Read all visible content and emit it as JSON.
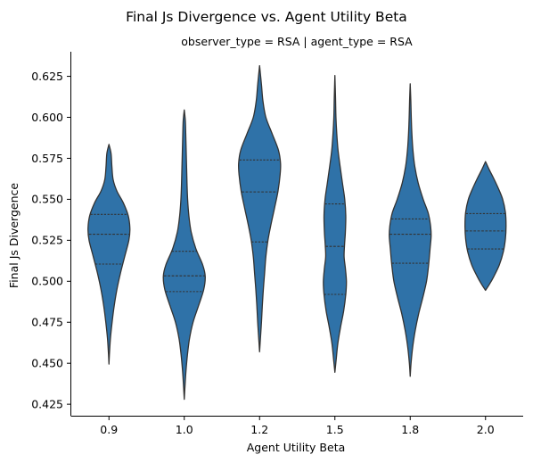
{
  "chart_data": {
    "type": "violin",
    "title": "Final Js Divergence vs. Agent Utility Beta",
    "subtitle": "observer_type = RSA | agent_type = RSA",
    "xlabel": "Agent Utility Beta",
    "ylabel": "Final Js Divergence",
    "categories": [
      "0.9",
      "1.0",
      "1.2",
      "1.5",
      "1.8",
      "2.0"
    ],
    "ylim": [
      0.418,
      0.64
    ],
    "yticks": [
      "0.425",
      "0.450",
      "0.475",
      "0.500",
      "0.525",
      "0.550",
      "0.575",
      "0.600",
      "0.625"
    ],
    "inner": "quartile",
    "colors": {
      "fill": "#2f72a8",
      "edge": "#333333",
      "axis": "#000000"
    },
    "violins": [
      {
        "category": "0.9",
        "min": 0.4495,
        "max": 0.5835,
        "quartiles": [
          0.5105,
          0.5287,
          0.5408
        ],
        "density": [
          [
            0.4495,
            0.0
          ],
          [
            0.455,
            0.02
          ],
          [
            0.465,
            0.07
          ],
          [
            0.475,
            0.15
          ],
          [
            0.485,
            0.25
          ],
          [
            0.495,
            0.38
          ],
          [
            0.505,
            0.55
          ],
          [
            0.515,
            0.75
          ],
          [
            0.525,
            0.95
          ],
          [
            0.532,
            1.0
          ],
          [
            0.54,
            0.92
          ],
          [
            0.548,
            0.68
          ],
          [
            0.555,
            0.38
          ],
          [
            0.562,
            0.2
          ],
          [
            0.57,
            0.14
          ],
          [
            0.578,
            0.1
          ],
          [
            0.5835,
            0.0
          ]
        ]
      },
      {
        "category": "1.0",
        "min": 0.428,
        "max": 0.6045,
        "quartiles": [
          0.4937,
          0.5033,
          0.5183
        ],
        "density": [
          [
            0.428,
            0.0
          ],
          [
            0.435,
            0.03
          ],
          [
            0.445,
            0.08
          ],
          [
            0.455,
            0.15
          ],
          [
            0.465,
            0.25
          ],
          [
            0.475,
            0.42
          ],
          [
            0.485,
            0.68
          ],
          [
            0.495,
            0.93
          ],
          [
            0.503,
            1.0
          ],
          [
            0.51,
            0.88
          ],
          [
            0.52,
            0.55
          ],
          [
            0.53,
            0.33
          ],
          [
            0.54,
            0.22
          ],
          [
            0.55,
            0.16
          ],
          [
            0.56,
            0.13
          ],
          [
            0.57,
            0.11
          ],
          [
            0.58,
            0.09
          ],
          [
            0.59,
            0.07
          ],
          [
            0.598,
            0.05
          ],
          [
            0.6045,
            0.0
          ]
        ]
      },
      {
        "category": "1.2",
        "min": 0.457,
        "max": 0.6315,
        "quartiles": [
          0.524,
          0.5545,
          0.574
        ],
        "density": [
          [
            0.457,
            0.0
          ],
          [
            0.465,
            0.04
          ],
          [
            0.475,
            0.09
          ],
          [
            0.485,
            0.13
          ],
          [
            0.495,
            0.18
          ],
          [
            0.505,
            0.24
          ],
          [
            0.515,
            0.3
          ],
          [
            0.525,
            0.4
          ],
          [
            0.535,
            0.55
          ],
          [
            0.545,
            0.72
          ],
          [
            0.555,
            0.88
          ],
          [
            0.565,
            0.98
          ],
          [
            0.572,
            1.0
          ],
          [
            0.58,
            0.9
          ],
          [
            0.59,
            0.6
          ],
          [
            0.6,
            0.3
          ],
          [
            0.61,
            0.16
          ],
          [
            0.62,
            0.09
          ],
          [
            0.6315,
            0.0
          ]
        ]
      },
      {
        "category": "1.5",
        "min": 0.4445,
        "max": 0.6255,
        "quartiles": [
          0.492,
          0.5213,
          0.5472
        ],
        "density": [
          [
            0.4445,
            0.0
          ],
          [
            0.452,
            0.06
          ],
          [
            0.462,
            0.14
          ],
          [
            0.472,
            0.27
          ],
          [
            0.482,
            0.42
          ],
          [
            0.492,
            0.52
          ],
          [
            0.5,
            0.55
          ],
          [
            0.508,
            0.5
          ],
          [
            0.515,
            0.44
          ],
          [
            0.522,
            0.46
          ],
          [
            0.53,
            0.5
          ],
          [
            0.54,
            0.52
          ],
          [
            0.55,
            0.47
          ],
          [
            0.56,
            0.36
          ],
          [
            0.57,
            0.25
          ],
          [
            0.58,
            0.15
          ],
          [
            0.59,
            0.09
          ],
          [
            0.6,
            0.05
          ],
          [
            0.612,
            0.03
          ],
          [
            0.6255,
            0.0
          ]
        ]
      },
      {
        "category": "1.8",
        "min": 0.442,
        "max": 0.6205,
        "quartiles": [
          0.511,
          0.5287,
          0.538
        ],
        "density": [
          [
            0.442,
            0.0
          ],
          [
            0.45,
            0.04
          ],
          [
            0.46,
            0.12
          ],
          [
            0.47,
            0.24
          ],
          [
            0.48,
            0.4
          ],
          [
            0.49,
            0.6
          ],
          [
            0.5,
            0.78
          ],
          [
            0.51,
            0.88
          ],
          [
            0.52,
            0.95
          ],
          [
            0.528,
            1.0
          ],
          [
            0.535,
            0.96
          ],
          [
            0.542,
            0.85
          ],
          [
            0.55,
            0.62
          ],
          [
            0.56,
            0.38
          ],
          [
            0.57,
            0.22
          ],
          [
            0.58,
            0.13
          ],
          [
            0.59,
            0.08
          ],
          [
            0.6,
            0.05
          ],
          [
            0.61,
            0.03
          ],
          [
            0.6205,
            0.0
          ]
        ]
      },
      {
        "category": "2.0",
        "min": 0.4945,
        "max": 0.573,
        "quartiles": [
          0.5197,
          0.5307,
          0.5413
        ],
        "density": [
          [
            0.4945,
            0.0
          ],
          [
            0.498,
            0.18
          ],
          [
            0.503,
            0.4
          ],
          [
            0.51,
            0.66
          ],
          [
            0.518,
            0.85
          ],
          [
            0.526,
            0.95
          ],
          [
            0.534,
            0.98
          ],
          [
            0.542,
            0.95
          ],
          [
            0.55,
            0.82
          ],
          [
            0.557,
            0.6
          ],
          [
            0.563,
            0.38
          ],
          [
            0.568,
            0.18
          ],
          [
            0.573,
            0.0
          ]
        ]
      }
    ]
  }
}
